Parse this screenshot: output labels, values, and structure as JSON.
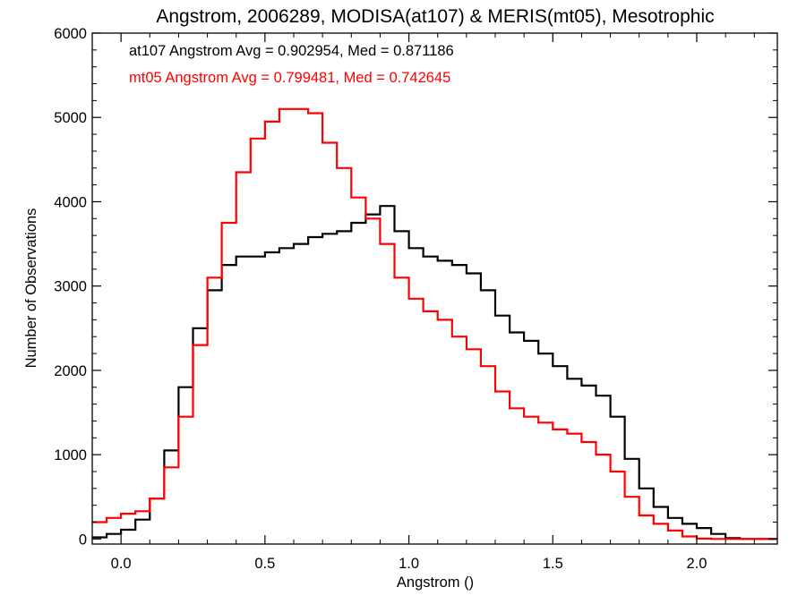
{
  "chart_data": {
    "type": "line",
    "title": "Angstrom, 2006289, MODISA(at107) & MERIS(mt05), Mesotrophic",
    "xlabel": "Angstrom ()",
    "ylabel": "Number of Observations",
    "xlim": [
      -0.1,
      2.28
    ],
    "ylim": [
      -60,
      6000
    ],
    "xticks": [
      {
        "value": 0.0,
        "label": "0.0"
      },
      {
        "value": 0.5,
        "label": "0.5"
      },
      {
        "value": 1.0,
        "label": "1.0"
      },
      {
        "value": 1.5,
        "label": "1.5"
      },
      {
        "value": 2.0,
        "label": "2.0"
      }
    ],
    "yticks": [
      {
        "value": 0,
        "label": "0"
      },
      {
        "value": 1000,
        "label": "1000"
      },
      {
        "value": 2000,
        "label": "2000"
      },
      {
        "value": 3000,
        "label": "3000"
      },
      {
        "value": 4000,
        "label": "4000"
      },
      {
        "value": 5000,
        "label": "5000"
      },
      {
        "value": 6000,
        "label": "6000"
      }
    ],
    "grid": false,
    "annotations": [
      {
        "text": "at107 Angstrom Avg = 0.902954, Med = 0.871186",
        "color": "#000000"
      },
      {
        "text": "mt05 Angstrom Avg = 0.799481, Med = 0.742645",
        "color": "#ff0000"
      }
    ],
    "series": [
      {
        "color": "#000000",
        "x": [
          -0.1,
          -0.05,
          0.0,
          0.05,
          0.1,
          0.15,
          0.2,
          0.25,
          0.3,
          0.35,
          0.4,
          0.45,
          0.5,
          0.55,
          0.6,
          0.65,
          0.7,
          0.75,
          0.8,
          0.85,
          0.9,
          0.95,
          1.0,
          1.05,
          1.1,
          1.15,
          1.2,
          1.25,
          1.3,
          1.35,
          1.4,
          1.45,
          1.5,
          1.55,
          1.6,
          1.65,
          1.7,
          1.75,
          1.8,
          1.85,
          1.9,
          1.95,
          2.0,
          2.05,
          2.1,
          2.15,
          2.2,
          2.25
        ],
        "y": [
          20,
          60,
          110,
          230,
          480,
          1050,
          1800,
          2500,
          2950,
          3250,
          3350,
          3350,
          3400,
          3450,
          3500,
          3580,
          3620,
          3650,
          3750,
          3850,
          3950,
          3650,
          3450,
          3350,
          3300,
          3250,
          3150,
          2950,
          2650,
          2450,
          2350,
          2200,
          2050,
          1900,
          1820,
          1700,
          1450,
          950,
          600,
          380,
          250,
          180,
          130,
          60,
          10,
          0,
          0,
          0
        ]
      },
      {
        "color": "#ff0000",
        "x": [
          -0.1,
          -0.05,
          0.0,
          0.05,
          0.1,
          0.15,
          0.2,
          0.25,
          0.3,
          0.35,
          0.4,
          0.45,
          0.5,
          0.55,
          0.6,
          0.65,
          0.7,
          0.75,
          0.8,
          0.85,
          0.9,
          0.95,
          1.0,
          1.05,
          1.1,
          1.15,
          1.2,
          1.25,
          1.3,
          1.35,
          1.4,
          1.45,
          1.5,
          1.55,
          1.6,
          1.65,
          1.7,
          1.75,
          1.8,
          1.85,
          1.9,
          1.95,
          2.0,
          2.05,
          2.1,
          2.15,
          2.2,
          2.25
        ],
        "y": [
          200,
          250,
          300,
          330,
          480,
          850,
          1450,
          2300,
          3100,
          3750,
          4350,
          4750,
          4950,
          5100,
          5100,
          5050,
          4700,
          4400,
          4050,
          3800,
          3500,
          3100,
          2850,
          2700,
          2600,
          2400,
          2250,
          2050,
          1750,
          1550,
          1450,
          1380,
          1300,
          1250,
          1150,
          1000,
          800,
          500,
          280,
          180,
          100,
          30,
          5,
          0,
          0,
          0,
          0,
          0
        ]
      }
    ]
  }
}
